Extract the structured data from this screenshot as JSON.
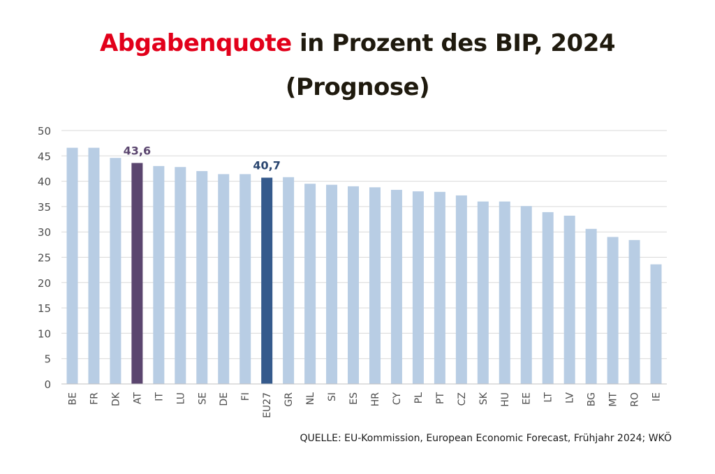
{
  "title": {
    "accent": "Abgabenquote",
    "rest": " in Prozent des BIP, 2024",
    "line2": "(Prognose)"
  },
  "source": "QUELLE: EU-Kommission, European Economic Forecast, Frühjahr 2024; WKÖ",
  "colors": {
    "accent": "#e2001a",
    "bar_default": "#b8cde4",
    "bar_at": "#5b466f",
    "bar_eu27": "#355a8c",
    "grid": "#d9d9d9",
    "label_at": "#5b466f",
    "label_eu27": "#2a4670"
  },
  "chart_data": {
    "type": "bar",
    "title": "Abgabenquote in Prozent des BIP, 2024 (Prognose)",
    "xlabel": "",
    "ylabel": "",
    "ylim": [
      0,
      50
    ],
    "yticks": [
      0,
      5,
      10,
      15,
      20,
      25,
      30,
      35,
      40,
      45,
      50
    ],
    "grid": true,
    "categories": [
      "BE",
      "FR",
      "DK",
      "AT",
      "IT",
      "LU",
      "SE",
      "DE",
      "FI",
      "EU27",
      "GR",
      "NL",
      "SI",
      "ES",
      "HR",
      "CY",
      "PL",
      "PT",
      "CZ",
      "SK",
      "HU",
      "EE",
      "LT",
      "LV",
      "BG",
      "MT",
      "RO",
      "IE"
    ],
    "values": [
      46.6,
      46.6,
      44.6,
      43.6,
      43.0,
      42.8,
      42.0,
      41.4,
      41.4,
      40.7,
      40.8,
      39.5,
      39.3,
      39.0,
      38.8,
      38.3,
      38.0,
      37.9,
      37.2,
      36.0,
      36.0,
      35.1,
      33.9,
      33.2,
      30.6,
      29.0,
      28.4,
      23.6
    ],
    "highlights": [
      {
        "category": "AT",
        "label": "43,6",
        "style": "at"
      },
      {
        "category": "EU27",
        "label": "40,7",
        "style": "eu27"
      }
    ]
  }
}
